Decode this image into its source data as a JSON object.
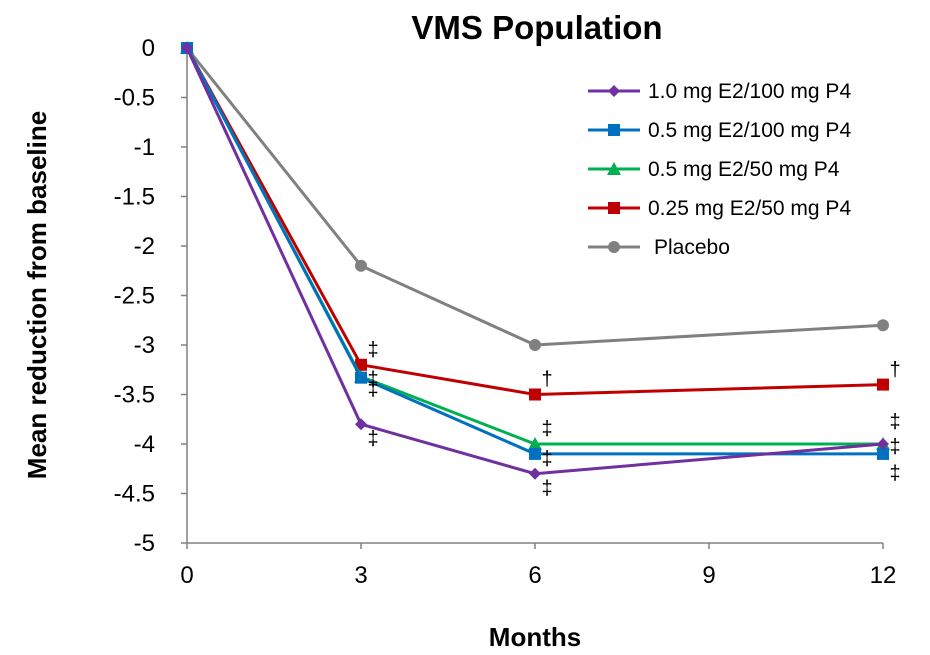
{
  "chart_data": {
    "type": "line",
    "title": "VMS Population",
    "xlabel": "Months",
    "ylabel": "Mean reduction from baseline",
    "xlim": [
      0,
      12
    ],
    "ylim": [
      -5,
      0
    ],
    "x_ticks": [
      "0",
      "3",
      "6",
      "9",
      "12"
    ],
    "y_ticks": [
      "0",
      "-0.5",
      "-1",
      "-1.5",
      "-2",
      "-2.5",
      "-3",
      "-3.5",
      "-4",
      "-4.5",
      "-5"
    ],
    "grid": false,
    "legend_position": "top-right",
    "x": [
      0,
      3,
      6,
      12
    ],
    "series": [
      {
        "name": "1.0 mg E2/100 mg P4",
        "marker": "diamond",
        "color": "#7030A0",
        "values": [
          0,
          -3.8,
          -4.3,
          -4.0
        ]
      },
      {
        "name": "0.5 mg E2/100 mg P4",
        "marker": "square",
        "color": "#0070C0",
        "values": [
          0,
          -3.33,
          -4.1,
          -4.1
        ]
      },
      {
        "name": "0.5 mg E2/50 mg P4",
        "marker": "triangle",
        "color": "#00B050",
        "values": [
          0,
          -3.32,
          -4.0,
          -4.0
        ]
      },
      {
        "name": "0.25 mg E2/50 mg P4",
        "marker": "square",
        "color": "#C00000",
        "values": [
          0,
          -3.2,
          -3.5,
          -3.4
        ]
      },
      {
        "name": "Placebo",
        "marker": "circle",
        "color": "#808080",
        "values": [
          0,
          -2.2,
          -3.0,
          -2.8
        ]
      }
    ],
    "annotations": [
      {
        "text": "‡",
        "x": 3,
        "y": -3.05
      },
      {
        "text": "‡",
        "x": 3,
        "y": -3.35
      },
      {
        "text": "‡",
        "x": 3,
        "y": -3.45
      },
      {
        "text": "‡",
        "x": 3,
        "y": -3.95
      },
      {
        "text": "†",
        "x": 6,
        "y": -3.35
      },
      {
        "text": "‡",
        "x": 6,
        "y": -3.85
      },
      {
        "text": "‡",
        "x": 6,
        "y": -4.15
      },
      {
        "text": "‡",
        "x": 6,
        "y": -4.45
      },
      {
        "text": "†",
        "x": 12,
        "y": -3.25
      },
      {
        "text": "‡",
        "x": 12,
        "y": -3.78
      },
      {
        "text": "‡",
        "x": 12,
        "y": -4.03
      },
      {
        "text": "‡",
        "x": 12,
        "y": -4.3
      }
    ]
  }
}
